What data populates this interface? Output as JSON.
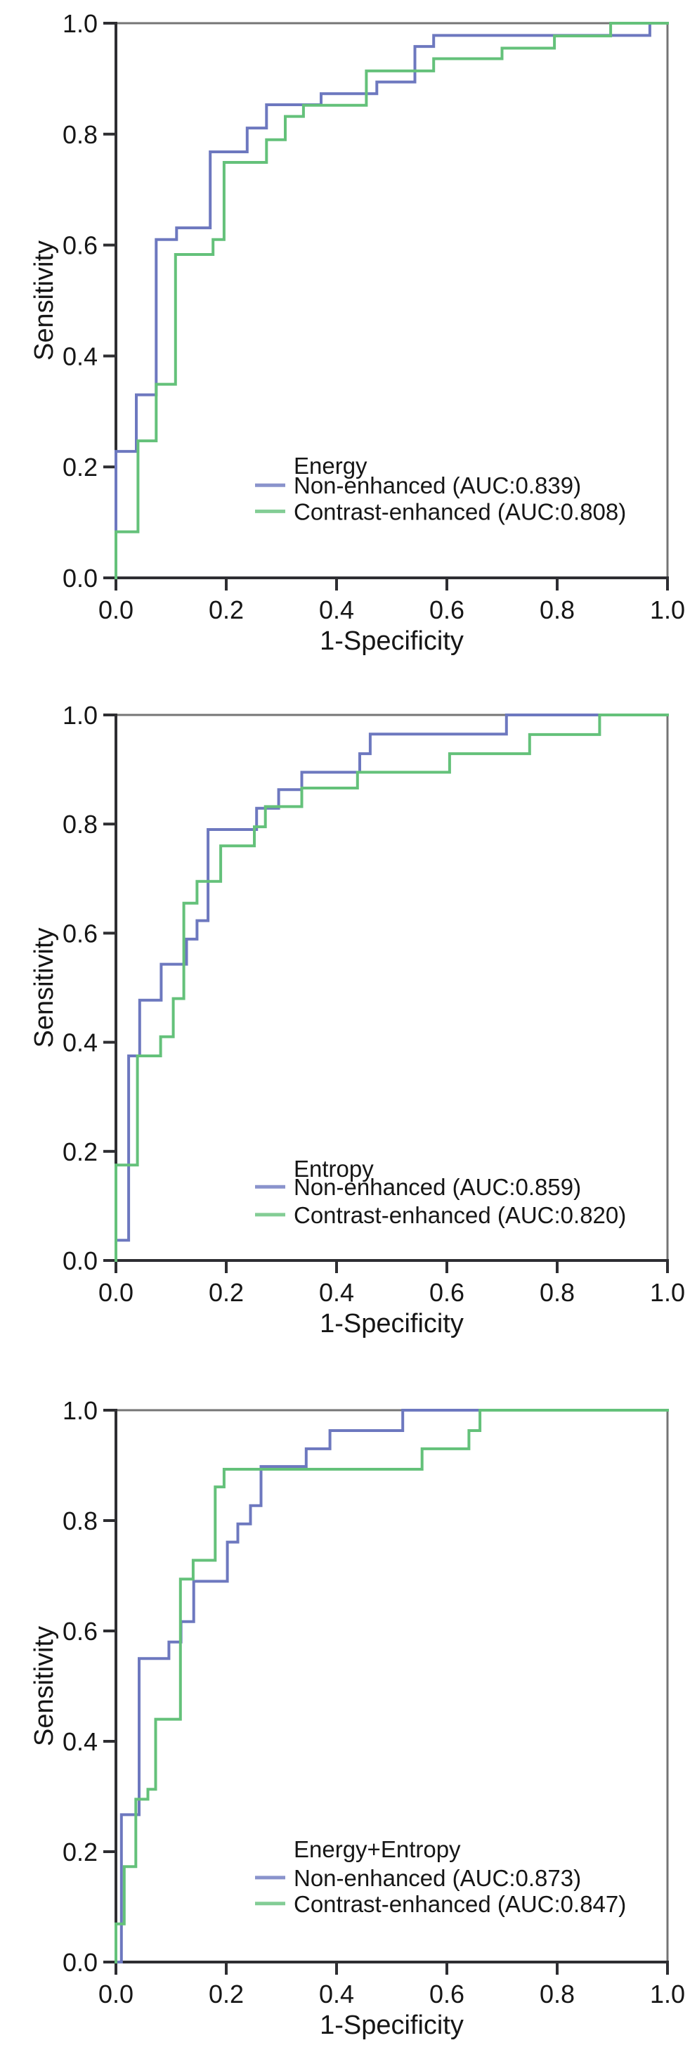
{
  "page": {
    "background": "#ffffff"
  },
  "colors": {
    "non_enhanced": "#6d78bf",
    "contrast_enhanced": "#64c17a",
    "frame": "#757575",
    "axis": "#2e2e32",
    "text": "#161616"
  },
  "chart_data": [
    {
      "type": "line",
      "subtype": "roc_step_curve",
      "title": "Energy",
      "xlabel": "1-Specificity",
      "ylabel": "Sensitivity",
      "xlim": [
        0,
        1
      ],
      "ylim": [
        0,
        1
      ],
      "grid": false,
      "xticks": [
        "0.0",
        "0.2",
        "0.4",
        "0.6",
        "0.8",
        "1.0"
      ],
      "yticks": [
        "0.0",
        "0.2",
        "0.4",
        "0.6",
        "0.8",
        "1.0"
      ],
      "legend": {
        "position": "inside-lower-center",
        "title_y": 0.203,
        "item_ys": [
          0.167,
          0.12
        ]
      },
      "series": [
        {
          "name": "Non-enhanced (AUC:0.839)",
          "auc": 0.839,
          "color_key": "non_enhanced",
          "points": [
            [
              0,
              0
            ],
            [
              0,
              0.228
            ],
            [
              0.037,
              0.228
            ],
            [
              0.037,
              0.33
            ],
            [
              0.073,
              0.33
            ],
            [
              0.073,
              0.61
            ],
            [
              0.11,
              0.61
            ],
            [
              0.11,
              0.631
            ],
            [
              0.171,
              0.631
            ],
            [
              0.171,
              0.768
            ],
            [
              0.238,
              0.768
            ],
            [
              0.238,
              0.811
            ],
            [
              0.273,
              0.811
            ],
            [
              0.273,
              0.853
            ],
            [
              0.372,
              0.853
            ],
            [
              0.372,
              0.873
            ],
            [
              0.473,
              0.873
            ],
            [
              0.473,
              0.894
            ],
            [
              0.542,
              0.894
            ],
            [
              0.542,
              0.958
            ],
            [
              0.576,
              0.958
            ],
            [
              0.576,
              0.978
            ],
            [
              0.968,
              0.978
            ],
            [
              0.968,
              1
            ],
            [
              1,
              1
            ]
          ]
        },
        {
          "name": "Contrast-enhanced (AUC:0.808)",
          "auc": 0.808,
          "color_key": "contrast_enhanced",
          "points": [
            [
              0,
              0
            ],
            [
              0,
              0.083
            ],
            [
              0.04,
              0.083
            ],
            [
              0.04,
              0.247
            ],
            [
              0.073,
              0.247
            ],
            [
              0.073,
              0.349
            ],
            [
              0.108,
              0.349
            ],
            [
              0.108,
              0.583
            ],
            [
              0.176,
              0.583
            ],
            [
              0.176,
              0.61
            ],
            [
              0.196,
              0.61
            ],
            [
              0.196,
              0.749
            ],
            [
              0.273,
              0.749
            ],
            [
              0.273,
              0.79
            ],
            [
              0.307,
              0.79
            ],
            [
              0.307,
              0.832
            ],
            [
              0.34,
              0.832
            ],
            [
              0.34,
              0.852
            ],
            [
              0.454,
              0.852
            ],
            [
              0.454,
              0.914
            ],
            [
              0.576,
              0.914
            ],
            [
              0.576,
              0.936
            ],
            [
              0.7,
              0.936
            ],
            [
              0.7,
              0.955
            ],
            [
              0.795,
              0.955
            ],
            [
              0.795,
              0.977
            ],
            [
              0.897,
              0.977
            ],
            [
              0.897,
              1
            ],
            [
              1,
              1
            ]
          ]
        }
      ]
    },
    {
      "type": "line",
      "subtype": "roc_step_curve",
      "title": "Entropy",
      "xlabel": "1-Specificity",
      "ylabel": "Sensitivity",
      "xlim": [
        0,
        1
      ],
      "ylim": [
        0,
        1
      ],
      "grid": false,
      "xticks": [
        "0.0",
        "0.2",
        "0.4",
        "0.6",
        "0.8",
        "1.0"
      ],
      "yticks": [
        "0.0",
        "0.2",
        "0.4",
        "0.6",
        "0.8",
        "1.0"
      ],
      "legend": {
        "position": "inside-lower-center",
        "title_y": 0.169,
        "item_ys": [
          0.135,
          0.084
        ]
      },
      "series": [
        {
          "name": "Non-enhanced (AUC:0.859)",
          "auc": 0.859,
          "color_key": "non_enhanced",
          "points": [
            [
              0,
              0
            ],
            [
              0,
              0.037
            ],
            [
              0.023,
              0.037
            ],
            [
              0.023,
              0.375
            ],
            [
              0.043,
              0.375
            ],
            [
              0.043,
              0.477
            ],
            [
              0.082,
              0.477
            ],
            [
              0.082,
              0.543
            ],
            [
              0.128,
              0.543
            ],
            [
              0.128,
              0.589
            ],
            [
              0.147,
              0.589
            ],
            [
              0.147,
              0.623
            ],
            [
              0.167,
              0.623
            ],
            [
              0.167,
              0.79
            ],
            [
              0.255,
              0.79
            ],
            [
              0.255,
              0.829
            ],
            [
              0.295,
              0.829
            ],
            [
              0.295,
              0.863
            ],
            [
              0.337,
              0.863
            ],
            [
              0.337,
              0.895
            ],
            [
              0.442,
              0.895
            ],
            [
              0.442,
              0.929
            ],
            [
              0.461,
              0.929
            ],
            [
              0.461,
              0.965
            ],
            [
              0.708,
              0.965
            ],
            [
              0.708,
              1
            ],
            [
              1,
              1
            ]
          ]
        },
        {
          "name": "Contrast-enhanced (AUC:0.820)",
          "auc": 0.82,
          "color_key": "contrast_enhanced",
          "points": [
            [
              0,
              0
            ],
            [
              0,
              0.175
            ],
            [
              0.039,
              0.175
            ],
            [
              0.039,
              0.375
            ],
            [
              0.081,
              0.375
            ],
            [
              0.081,
              0.41
            ],
            [
              0.104,
              0.41
            ],
            [
              0.104,
              0.48
            ],
            [
              0.123,
              0.48
            ],
            [
              0.123,
              0.655
            ],
            [
              0.147,
              0.655
            ],
            [
              0.147,
              0.695
            ],
            [
              0.19,
              0.695
            ],
            [
              0.19,
              0.76
            ],
            [
              0.251,
              0.76
            ],
            [
              0.251,
              0.795
            ],
            [
              0.271,
              0.795
            ],
            [
              0.271,
              0.832
            ],
            [
              0.337,
              0.832
            ],
            [
              0.337,
              0.866
            ],
            [
              0.438,
              0.866
            ],
            [
              0.438,
              0.895
            ],
            [
              0.605,
              0.895
            ],
            [
              0.605,
              0.929
            ],
            [
              0.75,
              0.929
            ],
            [
              0.75,
              0.964
            ],
            [
              0.877,
              0.964
            ],
            [
              0.877,
              1
            ],
            [
              1,
              1
            ]
          ]
        }
      ]
    },
    {
      "type": "line",
      "subtype": "roc_step_curve",
      "title": "Energy+Entropy",
      "xlabel": "1-Specificity",
      "ylabel": "Sensitivity",
      "xlim": [
        0,
        1
      ],
      "ylim": [
        0,
        1
      ],
      "grid": false,
      "xticks": [
        "0.0",
        "0.2",
        "0.4",
        "0.6",
        "0.8",
        "1.0"
      ],
      "yticks": [
        "0.0",
        "0.2",
        "0.4",
        "0.6",
        "0.8",
        "1.0"
      ],
      "legend": {
        "position": "inside-lower-center",
        "title_y": 0.205,
        "item_ys": [
          0.153,
          0.106
        ]
      },
      "series": [
        {
          "name": "Non-enhanced (AUC:0.873)",
          "auc": 0.873,
          "color_key": "non_enhanced",
          "points": [
            [
              0,
              0
            ],
            [
              0.01,
              0
            ],
            [
              0.01,
              0.267
            ],
            [
              0.042,
              0.267
            ],
            [
              0.042,
              0.55
            ],
            [
              0.096,
              0.55
            ],
            [
              0.096,
              0.58
            ],
            [
              0.118,
              0.58
            ],
            [
              0.118,
              0.617
            ],
            [
              0.141,
              0.617
            ],
            [
              0.141,
              0.69
            ],
            [
              0.202,
              0.69
            ],
            [
              0.202,
              0.761
            ],
            [
              0.221,
              0.761
            ],
            [
              0.221,
              0.794
            ],
            [
              0.244,
              0.794
            ],
            [
              0.244,
              0.827
            ],
            [
              0.263,
              0.827
            ],
            [
              0.263,
              0.898
            ],
            [
              0.345,
              0.898
            ],
            [
              0.345,
              0.93
            ],
            [
              0.388,
              0.93
            ],
            [
              0.388,
              0.963
            ],
            [
              0.52,
              0.963
            ],
            [
              0.52,
              1
            ],
            [
              1,
              1
            ]
          ]
        },
        {
          "name": "Contrast-enhanced (AUC:0.847)",
          "auc": 0.847,
          "color_key": "contrast_enhanced",
          "points": [
            [
              0,
              0
            ],
            [
              0,
              0.069
            ],
            [
              0.015,
              0.069
            ],
            [
              0.015,
              0.173
            ],
            [
              0.036,
              0.173
            ],
            [
              0.036,
              0.295
            ],
            [
              0.058,
              0.295
            ],
            [
              0.058,
              0.313
            ],
            [
              0.072,
              0.313
            ],
            [
              0.072,
              0.44
            ],
            [
              0.117,
              0.44
            ],
            [
              0.117,
              0.694
            ],
            [
              0.14,
              0.694
            ],
            [
              0.14,
              0.728
            ],
            [
              0.18,
              0.728
            ],
            [
              0.18,
              0.861
            ],
            [
              0.196,
              0.861
            ],
            [
              0.196,
              0.893
            ],
            [
              0.555,
              0.893
            ],
            [
              0.555,
              0.93
            ],
            [
              0.64,
              0.93
            ],
            [
              0.64,
              0.963
            ],
            [
              0.66,
              0.963
            ],
            [
              0.66,
              1
            ],
            [
              1,
              1
            ]
          ]
        }
      ]
    }
  ]
}
